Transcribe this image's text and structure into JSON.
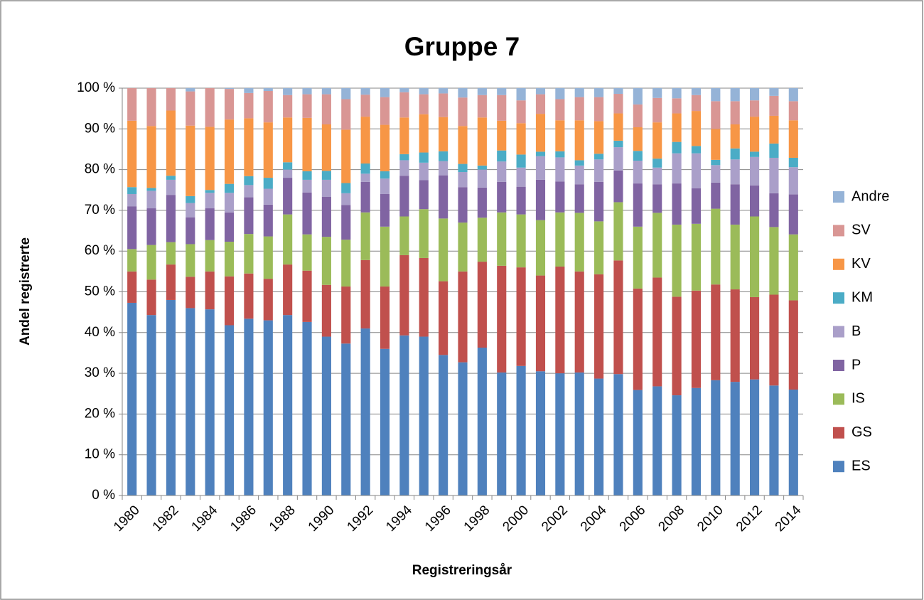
{
  "chart_data": {
    "type": "stacked_bar",
    "title": "Gruppe 7",
    "x_label": "Registreringsår",
    "y_label": "Andel registrerte",
    "categories": [
      "1980",
      null,
      "1982",
      null,
      "1984",
      null,
      "1986",
      null,
      "1988",
      null,
      "1990",
      null,
      "1992",
      null,
      "1994",
      null,
      "1996",
      null,
      "1998",
      null,
      "2000",
      null,
      "2002",
      null,
      "2004",
      null,
      "2006",
      null,
      "2008",
      null,
      "2010",
      null,
      "2012",
      null,
      "2014"
    ],
    "series": [
      {
        "name": "ES",
        "color": "#4f81bd",
        "values": [
          47.3,
          44.3,
          48.0,
          46.0,
          45.7,
          41.8,
          43.4,
          43.0,
          44.3,
          42.6,
          39.0,
          37.3,
          41.0,
          36.0,
          39.3,
          39.0,
          34.5,
          32.7,
          36.3,
          30.2,
          31.8,
          30.5,
          30.0,
          30.2,
          28.7,
          29.8,
          25.9,
          26.8,
          24.6,
          26.4,
          28.3,
          27.9,
          28.5,
          27.0,
          26.0
        ]
      },
      {
        "name": "GS",
        "color": "#c0504d",
        "values": [
          7.7,
          8.7,
          8.7,
          7.7,
          9.3,
          12.0,
          11.1,
          10.2,
          12.4,
          12.6,
          12.7,
          14.0,
          16.8,
          15.3,
          19.7,
          19.3,
          18.1,
          22.3,
          21.1,
          26.2,
          24.2,
          23.5,
          26.2,
          24.8,
          25.6,
          27.9,
          24.9,
          26.7,
          24.2,
          23.9,
          23.5,
          22.7,
          20.2,
          22.3,
          21.9
        ]
      },
      {
        "name": "IS",
        "color": "#9bbb59",
        "values": [
          5.5,
          8.5,
          5.5,
          8.0,
          7.7,
          8.5,
          9.7,
          10.4,
          12.3,
          8.9,
          11.8,
          11.5,
          11.7,
          14.7,
          9.5,
          12.0,
          15.4,
          12.0,
          10.8,
          13.1,
          13.0,
          13.6,
          13.3,
          14.4,
          13.0,
          14.3,
          15.2,
          15.9,
          17.7,
          16.4,
          18.6,
          15.9,
          19.8,
          16.6,
          16.2
        ]
      },
      {
        "name": "P",
        "color": "#8064a2",
        "values": [
          10.5,
          9.0,
          11.6,
          6.6,
          7.8,
          7.2,
          9.0,
          7.8,
          9.0,
          10.3,
          9.8,
          8.5,
          7.5,
          8.0,
          10.0,
          7.1,
          10.6,
          8.7,
          7.4,
          7.5,
          6.8,
          9.9,
          7.6,
          7.0,
          9.7,
          7.8,
          10.6,
          7.0,
          10.1,
          8.7,
          6.4,
          9.9,
          7.6,
          8.3,
          9.8
        ]
      },
      {
        "name": "B",
        "color": "#aa9fc9",
        "values": [
          3.0,
          4.3,
          3.7,
          3.5,
          3.8,
          4.8,
          3.0,
          3.9,
          2.0,
          3.1,
          4.2,
          2.9,
          2.0,
          3.8,
          3.8,
          4.3,
          3.5,
          3.7,
          4.4,
          5.0,
          4.7,
          5.8,
          5.9,
          4.6,
          5.5,
          5.7,
          5.6,
          4.1,
          7.4,
          8.6,
          4.3,
          6.1,
          7.0,
          8.7,
          6.7
        ]
      },
      {
        "name": "KM",
        "color": "#4bacc6",
        "values": [
          1.7,
          0.7,
          1.0,
          1.7,
          0.7,
          2.2,
          2.2,
          2.7,
          1.8,
          2.1,
          2.2,
          2.5,
          2.5,
          1.8,
          1.5,
          2.5,
          2.4,
          2.0,
          1.0,
          2.7,
          3.2,
          1.1,
          1.5,
          1.3,
          1.4,
          1.6,
          2.4,
          2.2,
          2.8,
          1.8,
          1.3,
          2.7,
          1.3,
          3.5,
          2.3
        ]
      },
      {
        "name": "KV",
        "color": "#f79646",
        "values": [
          16.3,
          15.2,
          16.0,
          17.3,
          15.5,
          15.8,
          14.2,
          13.6,
          11.0,
          13.1,
          11.4,
          13.1,
          11.5,
          11.4,
          9.0,
          9.4,
          8.4,
          9.3,
          11.8,
          7.3,
          7.7,
          9.3,
          7.6,
          9.8,
          8.0,
          6.7,
          5.8,
          8.9,
          7.0,
          8.6,
          7.6,
          5.9,
          8.6,
          6.8,
          9.2
        ]
      },
      {
        "name": "SV",
        "color": "#d99694",
        "values": [
          8.0,
          9.3,
          5.5,
          8.4,
          9.5,
          7.5,
          6.2,
          7.7,
          5.5,
          5.8,
          7.4,
          7.5,
          5.4,
          6.8,
          6.2,
          4.9,
          5.8,
          7.0,
          5.5,
          6.3,
          5.6,
          4.8,
          5.2,
          5.7,
          5.9,
          4.8,
          5.6,
          6.0,
          3.7,
          3.9,
          6.8,
          5.7,
          4.0,
          4.9,
          4.7
        ]
      },
      {
        "name": "Andre",
        "color": "#95b3d7",
        "values": [
          0.0,
          0.0,
          0.0,
          0.8,
          0.0,
          0.2,
          1.2,
          0.7,
          1.7,
          1.5,
          1.5,
          2.7,
          1.6,
          2.2,
          1.0,
          1.5,
          1.3,
          2.3,
          1.7,
          1.7,
          3.0,
          1.5,
          2.7,
          2.2,
          2.2,
          1.4,
          4.0,
          2.4,
          2.5,
          1.7,
          3.2,
          3.2,
          3.0,
          1.9,
          3.2
        ]
      }
    ],
    "ylim": [
      0,
      100
    ],
    "yticks": [
      {
        "value": 0,
        "label": "0 %"
      },
      {
        "value": 10,
        "label": "10 %"
      },
      {
        "value": 20,
        "label": "20 %"
      },
      {
        "value": 30,
        "label": "30 %"
      },
      {
        "value": 40,
        "label": "40 %"
      },
      {
        "value": 50,
        "label": "50 %"
      },
      {
        "value": 60,
        "label": "60 %"
      },
      {
        "value": 70,
        "label": "70 %"
      },
      {
        "value": 80,
        "label": "80 %"
      },
      {
        "value": 90,
        "label": "90 %"
      },
      {
        "value": 100,
        "label": "100 %"
      }
    ],
    "grid": true,
    "legend": "right"
  }
}
